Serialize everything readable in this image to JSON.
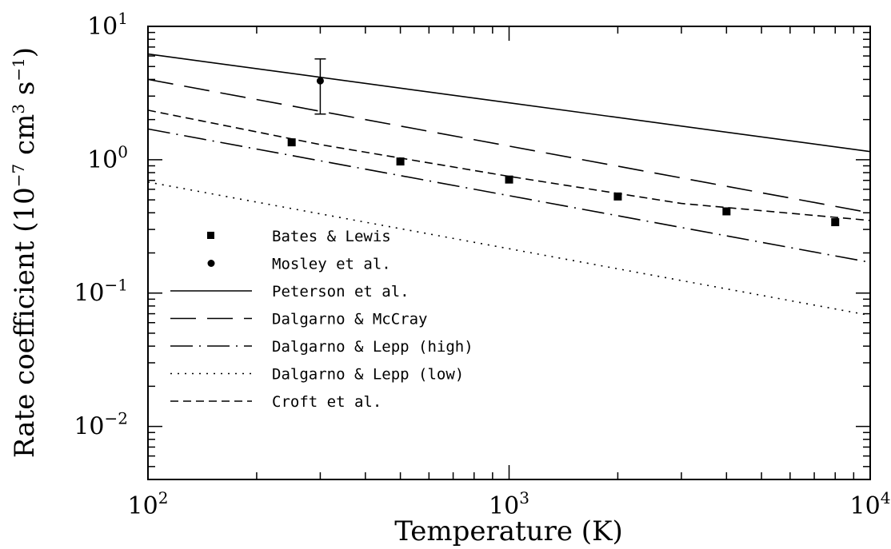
{
  "chart_data": {
    "type": "line",
    "xlabel": "Temperature (K)",
    "ylabel_prefix": "Rate coefficient (10",
    "ylabel_exp1": "−7",
    "ylabel_mid": " cm",
    "ylabel_exp2": "3",
    "ylabel_mid2": " s",
    "ylabel_exp3": "−1",
    "ylabel_suffix": ")",
    "xscale": "log",
    "yscale": "log",
    "xlim": [
      100,
      10000
    ],
    "ylim": [
      0.004,
      10
    ],
    "x_ticks": [
      {
        "value": 100,
        "base": "10",
        "exp": "2"
      },
      {
        "value": 1000,
        "base": "10",
        "exp": "3"
      },
      {
        "value": 10000,
        "base": "10",
        "exp": "4"
      }
    ],
    "y_ticks": [
      {
        "value": 10,
        "base": "10",
        "exp": "1"
      },
      {
        "value": 1,
        "base": "10",
        "exp": "0"
      },
      {
        "value": 0.1,
        "base": "10",
        "exp": "−1"
      },
      {
        "value": 0.01,
        "base": "10",
        "exp": "−2"
      }
    ],
    "legend_position": "lower-left",
    "series": [
      {
        "name": "Bates & Lewis",
        "kind": "square",
        "x": [
          250,
          500,
          1000,
          2000,
          4000,
          8000
        ],
        "y": [
          1.35,
          0.97,
          0.71,
          0.53,
          0.41,
          0.34
        ]
      },
      {
        "name": "Mosley et al.",
        "kind": "circle",
        "x": [
          300
        ],
        "y": [
          3.9
        ],
        "err_low": [
          2.2
        ],
        "err_high": [
          5.7
        ]
      },
      {
        "name": "Peterson et al.",
        "kind": "line",
        "dash": "",
        "x": [
          100,
          10000
        ],
        "y": [
          6.2,
          1.15
        ]
      },
      {
        "name": "Dalgarno & McCray",
        "kind": "line",
        "dash": "32 14",
        "x": [
          100,
          10000
        ],
        "y": [
          4.0,
          0.4
        ]
      },
      {
        "name": "Dalgarno & Lepp (high)",
        "kind": "line",
        "dash": "28 8 2 8",
        "x": [
          100,
          10000
        ],
        "y": [
          1.7,
          0.17
        ]
      },
      {
        "name": "Dalgarno & Lepp (low)",
        "kind": "line",
        "dash": "2 7",
        "x": [
          100,
          10000
        ],
        "y": [
          0.68,
          0.068
        ]
      },
      {
        "name": "Croft et al.",
        "kind": "line",
        "dash": "10 6",
        "x": [
          100,
          300,
          1000,
          3000,
          10000
        ],
        "y": [
          2.35,
          1.3,
          0.75,
          0.47,
          0.35
        ]
      }
    ]
  }
}
